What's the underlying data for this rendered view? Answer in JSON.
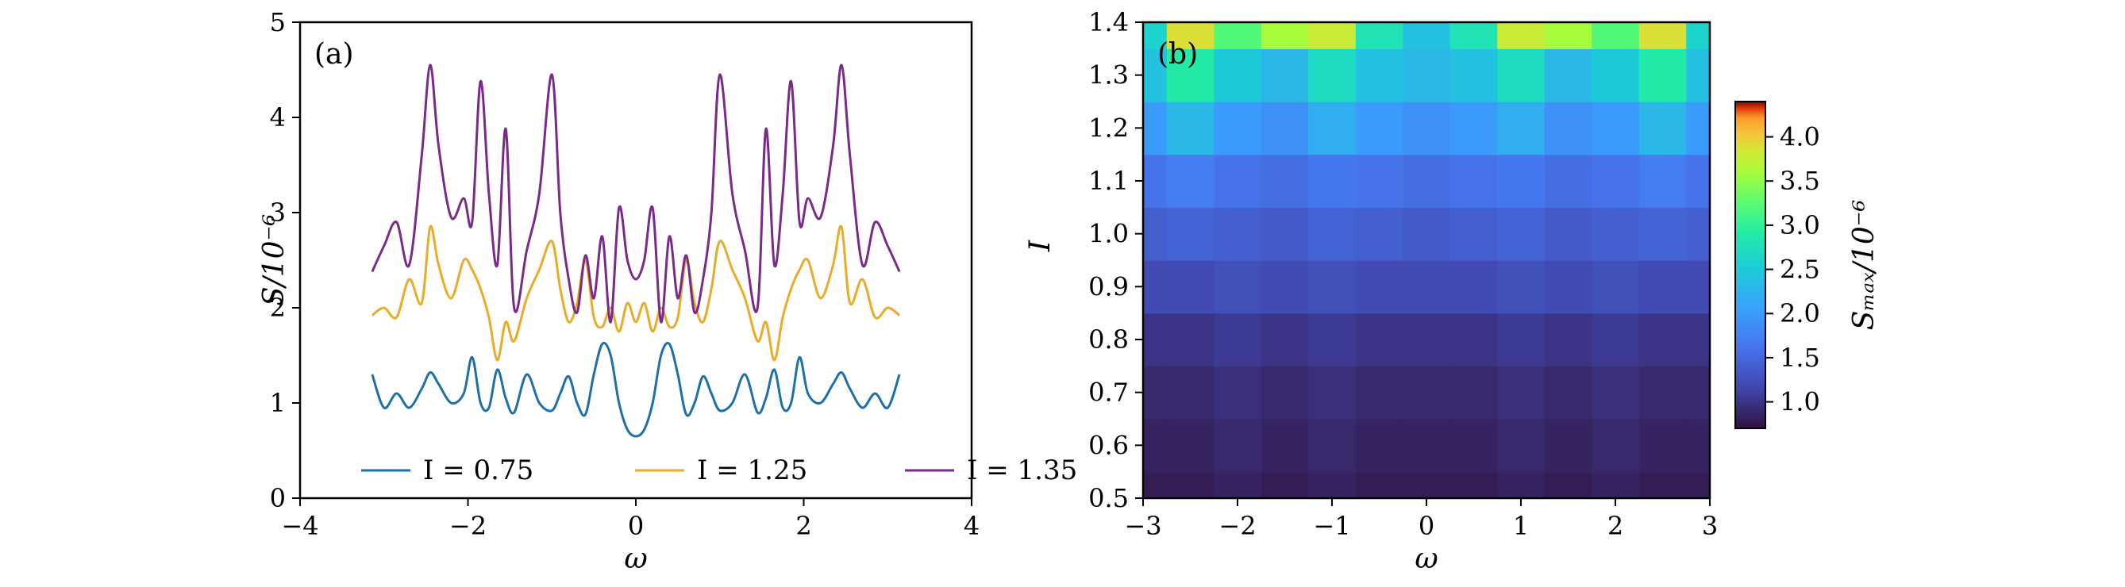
{
  "chart_data": [
    {
      "type": "line",
      "panel_label": "(a)",
      "xlabel": "ω",
      "ylabel": "S/10⁻⁶",
      "xlim": [
        -4,
        4
      ],
      "ylim": [
        0,
        5
      ],
      "xticks": [
        "−4",
        "−2",
        "0",
        "2",
        "4"
      ],
      "yticks": [
        "0",
        "1",
        "2",
        "3",
        "4",
        "5"
      ],
      "legend_position": "lower center",
      "x": [
        -3.14,
        -3.0,
        -2.85,
        -2.7,
        -2.55,
        -2.45,
        -2.35,
        -2.2,
        -2.05,
        -1.95,
        -1.85,
        -1.75,
        -1.65,
        -1.55,
        -1.45,
        -1.3,
        -1.15,
        -1.0,
        -0.9,
        -0.8,
        -0.7,
        -0.6,
        -0.5,
        -0.4,
        -0.3,
        -0.2,
        -0.1,
        0.0,
        0.1,
        0.2,
        0.3,
        0.4,
        0.5,
        0.6,
        0.7,
        0.8,
        0.9,
        1.0,
        1.15,
        1.3,
        1.45,
        1.55,
        1.65,
        1.75,
        1.85,
        1.95,
        2.05,
        2.2,
        2.35,
        2.45,
        2.55,
        2.7,
        2.85,
        3.0,
        3.14
      ],
      "series": [
        {
          "name": "I = 0.75",
          "color": "#1f6fa9",
          "values": [
            1.3,
            0.95,
            1.1,
            0.95,
            1.15,
            1.32,
            1.2,
            1.0,
            1.1,
            1.48,
            1.0,
            0.95,
            1.35,
            1.05,
            0.9,
            1.3,
            1.0,
            0.92,
            1.1,
            1.28,
            1.0,
            0.88,
            1.3,
            1.62,
            1.5,
            1.0,
            0.72,
            0.65,
            0.72,
            1.0,
            1.5,
            1.62,
            1.3,
            0.88,
            1.0,
            1.28,
            1.1,
            0.92,
            1.0,
            1.3,
            0.9,
            1.05,
            1.35,
            0.95,
            1.0,
            1.48,
            1.1,
            1.0,
            1.2,
            1.32,
            1.15,
            0.95,
            1.1,
            0.95,
            1.3
          ]
        },
        {
          "name": "I = 1.25",
          "color": "#e8ab2a",
          "values": [
            1.92,
            2.0,
            1.9,
            2.3,
            2.05,
            2.85,
            2.45,
            2.1,
            2.5,
            2.4,
            2.2,
            1.9,
            1.45,
            1.85,
            1.65,
            2.1,
            2.4,
            2.7,
            2.2,
            1.85,
            2.05,
            2.5,
            1.9,
            1.8,
            2.0,
            1.75,
            2.05,
            1.85,
            2.05,
            1.75,
            2.0,
            1.8,
            1.9,
            2.5,
            2.05,
            1.85,
            2.2,
            2.7,
            2.4,
            2.1,
            1.65,
            1.85,
            1.45,
            1.9,
            2.2,
            2.4,
            2.5,
            2.1,
            2.45,
            2.85,
            2.05,
            2.3,
            1.9,
            2.0,
            1.92
          ]
        },
        {
          "name": "I = 1.35",
          "color": "#7a2b8a",
          "values": [
            2.38,
            2.65,
            2.9,
            2.45,
            3.6,
            4.55,
            3.7,
            2.95,
            3.15,
            2.9,
            4.38,
            3.2,
            2.45,
            3.88,
            2.0,
            2.6,
            3.2,
            4.45,
            3.0,
            2.3,
            1.95,
            2.55,
            2.1,
            2.75,
            1.85,
            3.05,
            2.5,
            2.3,
            2.5,
            3.05,
            1.85,
            2.75,
            2.1,
            2.55,
            1.95,
            2.3,
            3.0,
            4.45,
            3.2,
            2.6,
            2.0,
            3.88,
            2.45,
            3.2,
            4.38,
            2.9,
            3.15,
            2.95,
            3.7,
            4.55,
            3.6,
            2.45,
            2.9,
            2.65,
            2.38
          ]
        }
      ]
    },
    {
      "type": "heatmap",
      "panel_label": "(b)",
      "xlabel": "ω",
      "ylabel": "I",
      "xlim": [
        -3,
        3
      ],
      "ylim": [
        0.5,
        1.4
      ],
      "xticks": [
        "−3",
        "−2",
        "−1",
        "0",
        "1",
        "2",
        "3"
      ],
      "yticks": [
        "0.5",
        "0.6",
        "0.7",
        "0.8",
        "0.9",
        "1.0",
        "1.1",
        "1.2",
        "1.3",
        "1.4"
      ],
      "colorbar_label": "Sₘₐₓ/10⁻⁶",
      "colorbar_range": [
        0.7,
        4.4
      ],
      "colorbar_ticks": [
        "1.0",
        "1.5",
        "2.0",
        "2.5",
        "3.0",
        "3.5",
        "4.0"
      ],
      "colormap": "turbo",
      "x": [
        -3.0,
        -2.5,
        -2.0,
        -1.5,
        -1.0,
        -0.5,
        0.0,
        0.5,
        1.0,
        1.5,
        2.0,
        2.5,
        3.0
      ],
      "y": [
        0.5,
        0.6,
        0.7,
        0.8,
        0.9,
        1.0,
        1.1,
        1.2,
        1.3,
        1.4
      ],
      "values": [
        [
          0.8,
          0.8,
          0.85,
          0.8,
          0.85,
          0.8,
          0.8,
          0.8,
          0.85,
          0.8,
          0.85,
          0.8,
          0.8
        ],
        [
          0.85,
          0.85,
          0.9,
          0.85,
          0.9,
          0.85,
          0.85,
          0.85,
          0.9,
          0.85,
          0.9,
          0.85,
          0.85
        ],
        [
          0.9,
          0.9,
          0.95,
          0.9,
          0.95,
          0.9,
          0.9,
          0.9,
          0.95,
          0.9,
          0.95,
          0.9,
          0.9
        ],
        [
          1.0,
          1.0,
          1.05,
          1.0,
          1.05,
          1.0,
          1.0,
          1.0,
          1.05,
          1.0,
          1.05,
          1.0,
          1.0
        ],
        [
          1.2,
          1.2,
          1.25,
          1.2,
          1.25,
          1.2,
          1.2,
          1.2,
          1.25,
          1.2,
          1.25,
          1.2,
          1.2
        ],
        [
          1.4,
          1.45,
          1.4,
          1.35,
          1.45,
          1.4,
          1.35,
          1.4,
          1.45,
          1.35,
          1.4,
          1.45,
          1.4
        ],
        [
          1.6,
          1.7,
          1.6,
          1.55,
          1.65,
          1.6,
          1.55,
          1.6,
          1.65,
          1.55,
          1.6,
          1.7,
          1.6
        ],
        [
          2.0,
          2.3,
          2.0,
          1.9,
          2.2,
          2.0,
          1.9,
          2.0,
          2.2,
          1.9,
          2.0,
          2.3,
          2.0
        ],
        [
          2.4,
          2.9,
          2.5,
          2.3,
          2.7,
          2.4,
          2.3,
          2.4,
          2.7,
          2.3,
          2.5,
          2.9,
          2.4
        ],
        [
          2.6,
          3.9,
          3.2,
          3.6,
          3.8,
          2.8,
          2.4,
          2.8,
          3.8,
          3.6,
          3.2,
          3.9,
          2.6
        ]
      ]
    }
  ]
}
